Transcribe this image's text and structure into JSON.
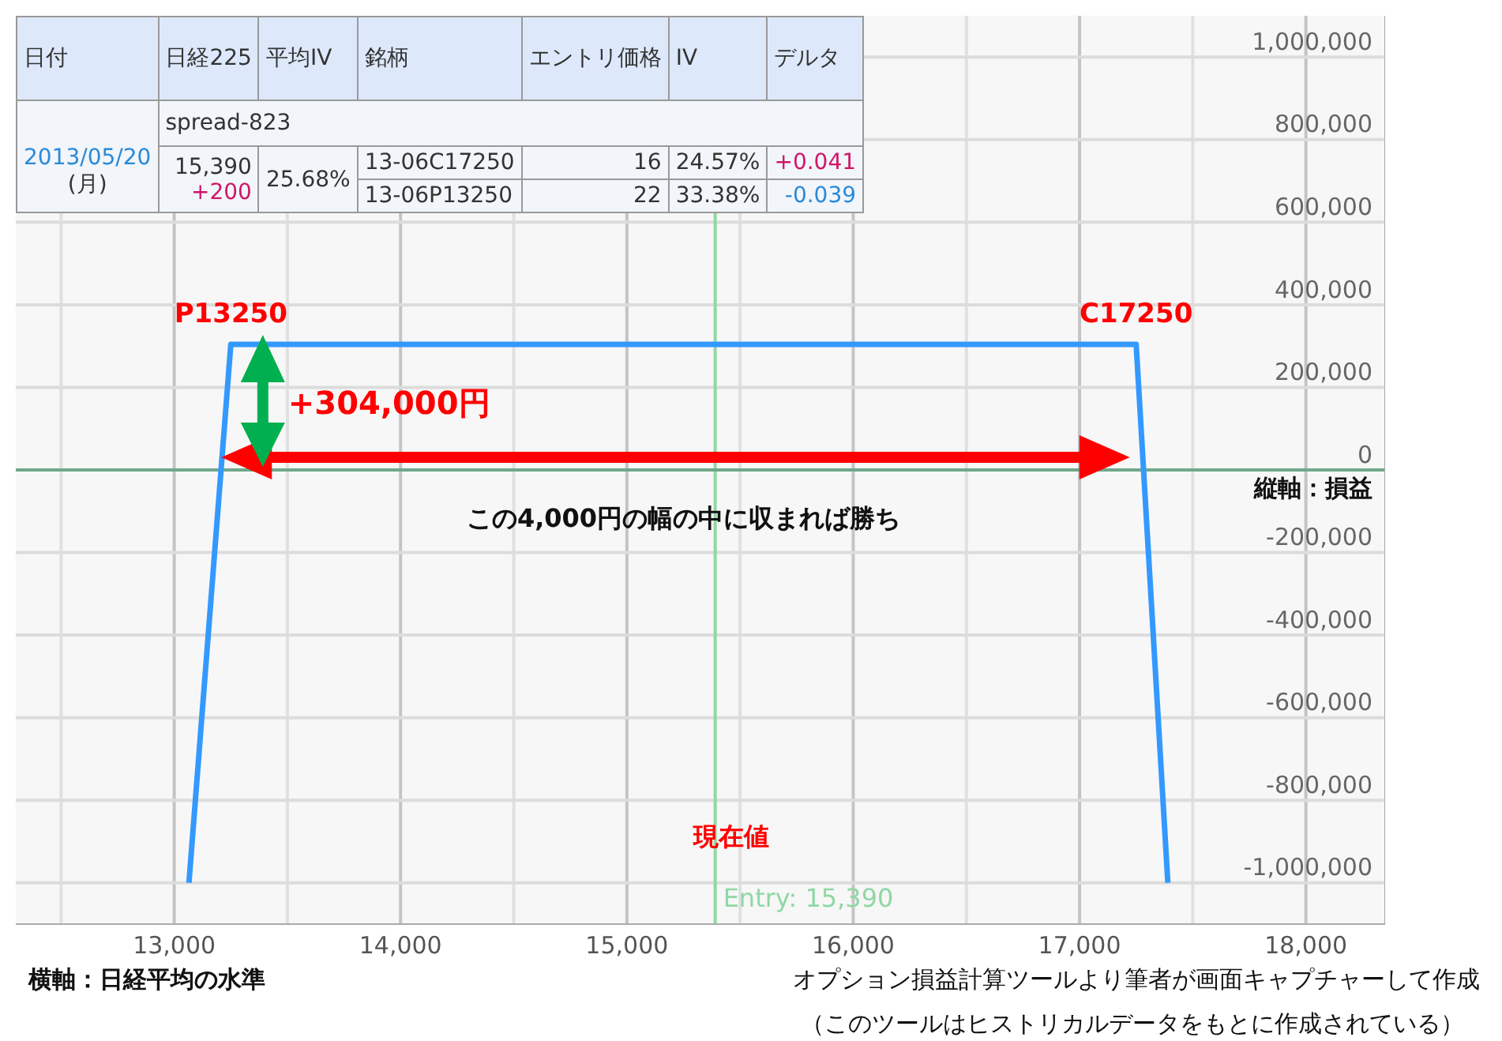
{
  "chart_data": [
    {
      "type": "line",
      "xlabel": "横軸：日経平均の水準",
      "ylabel": "縦軸：損益",
      "xlim": [
        12300,
        18350
      ],
      "ylim": [
        -1100000,
        1100000
      ],
      "xticks": [
        {
          "value": 12500,
          "label": null
        },
        {
          "value": 13000,
          "label": "13,000"
        },
        {
          "value": 13500,
          "label": null
        },
        {
          "value": 14000,
          "label": "14,000"
        },
        {
          "value": 14500,
          "label": null
        },
        {
          "value": 15000,
          "label": "15,000"
        },
        {
          "value": 15500,
          "label": null
        },
        {
          "value": 16000,
          "label": "16,000"
        },
        {
          "value": 16500,
          "label": null
        },
        {
          "value": 17000,
          "label": "17,000"
        },
        {
          "value": 17500,
          "label": null
        },
        {
          "value": 18000,
          "label": "18,000"
        }
      ],
      "yticks": [
        {
          "value": -1000000,
          "label": "-1,000,000"
        },
        {
          "value": -800000,
          "label": "-800,000"
        },
        {
          "value": -600000,
          "label": "-600,000"
        },
        {
          "value": -400000,
          "label": "-400,000"
        },
        {
          "value": -200000,
          "label": "-200,000"
        },
        0,
        {
          "value": 200000,
          "label": "200,000"
        },
        {
          "value": 400000,
          "label": "400,000"
        },
        {
          "value": 600000,
          "label": "600,000"
        },
        {
          "value": 800000,
          "label": "800,000"
        },
        {
          "value": 1000000,
          "label": "1,000,000"
        }
      ],
      "grid": true,
      "marker": "none",
      "line_style": "solid",
      "series": [
        {
          "color": "#3399ff",
          "x": [
            13065,
            13250,
            17250,
            17390
          ],
          "values": [
            -1000000,
            304000,
            304000,
            -1000000
          ]
        }
      ],
      "ref_lines": [
        {
          "axis": "x",
          "value": 15390,
          "label": "Entry: 15,390",
          "color": "#8fd8a4"
        },
        {
          "axis": "y",
          "value": 0,
          "color": "#6fa88a"
        }
      ],
      "annotations": [
        {
          "text": "P13250",
          "x": 13250,
          "y": 304000
        },
        {
          "text": "C17250",
          "x": 17250,
          "y": 304000
        },
        {
          "text": "+304,000円",
          "x": 14480,
          "y": 304000
        },
        {
          "text": "この4,000円の幅の中に収まれば勝ち",
          "x": 15250,
          "y": 0
        },
        {
          "text": "現在値",
          "x": 15390
        },
        "オプション損益計算ツールより筆者が画面キャプチャーして作成",
        "（このツールはヒストリカルデータをもとに作成されている）"
      ]
    },
    {
      "type": "other",
      "categories": [
        "日付",
        "日経225",
        "平均IV",
        "銘柄",
        "エントリ価格",
        "IV",
        "デルタ"
      ],
      "cell_labels": [
        [
          "2013/05/20",
          "(月)"
        ],
        [
          "spread-823"
        ],
        [
          "15,390",
          "+200"
        ],
        [
          "25.68%"
        ],
        [
          "13-06C17250",
          "16",
          "24.57%",
          "+0.041"
        ],
        [
          "13-06P13250",
          "22",
          "33.38%",
          "-0.039"
        ]
      ]
    }
  ]
}
